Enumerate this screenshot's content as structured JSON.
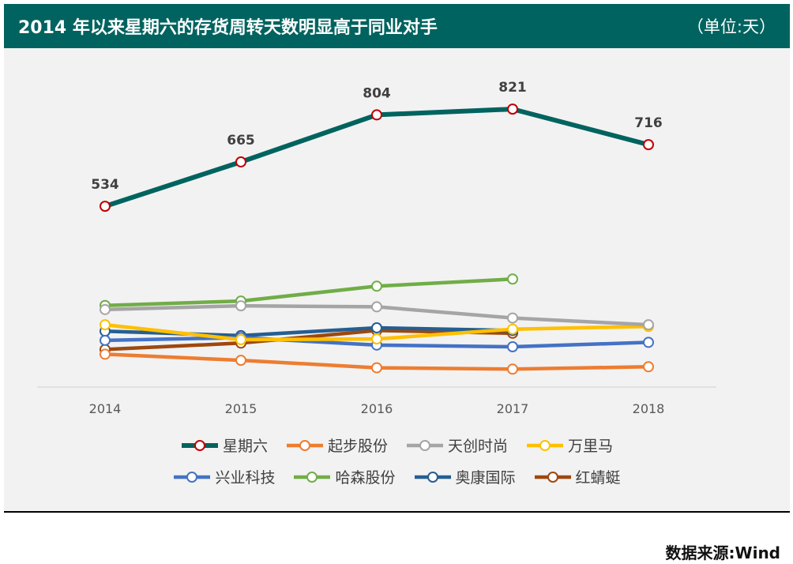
{
  "title": "2014 年以来星期六的存货周转天数明显高于同业对手",
  "unit": "（单位:天）",
  "source": "数据来源:Wind",
  "chart_data": {
    "type": "line",
    "title": "2014 年以来星期六的存货周转天数明显高于同业对手",
    "ylabel": "天",
    "ylim": [
      0,
      1000
    ],
    "grid": false,
    "legend": "bottom",
    "categories": [
      "2014",
      "2015",
      "2016",
      "2017",
      "2018"
    ],
    "series": [
      {
        "name": "星期六",
        "color": "#00635f",
        "values": [
          534,
          665,
          804,
          821,
          716
        ],
        "labels": [
          "534",
          "665",
          "804",
          "821",
          "716"
        ]
      },
      {
        "name": "起步股份",
        "color": "#ed7d31",
        "values": [
          97,
          79,
          57,
          53,
          60
        ]
      },
      {
        "name": "天创时尚",
        "color": "#a5a5a5",
        "values": [
          229,
          240,
          237,
          204,
          184
        ]
      },
      {
        "name": "万里马",
        "color": "#ffc000",
        "values": [
          184,
          140,
          142,
          171,
          179
        ]
      },
      {
        "name": "兴业科技",
        "color": "#4472c4",
        "values": [
          138,
          146,
          124,
          119,
          132
        ]
      },
      {
        "name": "哈森股份",
        "color": "#70ad47",
        "values": [
          241,
          254,
          298,
          319,
          null
        ]
      },
      {
        "name": "奥康国际",
        "color": "#255e91",
        "values": [
          165,
          152,
          175,
          167,
          null
        ]
      },
      {
        "name": "红蜻蜓",
        "color": "#9e480e",
        "values": [
          111,
          130,
          167,
          159,
          null
        ]
      }
    ]
  }
}
